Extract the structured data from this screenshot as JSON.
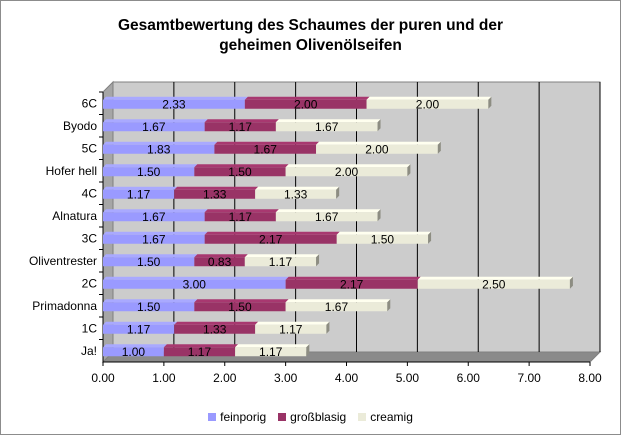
{
  "chart_data": {
    "type": "bar",
    "orientation": "horizontal",
    "stacked": true,
    "title_lines": [
      "Gesamtbewertung des Schaumes der puren und der",
      "geheimen Olivenölseifen"
    ],
    "categories": [
      "6C",
      "Byodo",
      "5C",
      "Hofer hell",
      "4C",
      "Alnatura",
      "3C",
      "Oliventrester",
      "2C",
      "Primadonna",
      "1C",
      "Ja!"
    ],
    "series": [
      {
        "name": "feinporig",
        "color": "#9a9aff",
        "values": [
          2.33,
          1.67,
          1.83,
          1.5,
          1.17,
          1.67,
          1.67,
          1.5,
          3.0,
          1.5,
          1.17,
          1.0
        ],
        "labels": [
          "2.33",
          "1.67",
          "1.83",
          "1.50",
          "1.17",
          "1.67",
          "1.67",
          "1.50",
          "3.00",
          "1.50",
          "1.17",
          "1.00"
        ]
      },
      {
        "name": "großblasig",
        "color": "#993366",
        "values": [
          2.0,
          1.17,
          1.67,
          1.5,
          1.33,
          1.17,
          2.17,
          0.83,
          2.17,
          1.5,
          1.33,
          1.17
        ],
        "labels": [
          "2.00",
          "1.17",
          "1.67",
          "1.50",
          "1.33",
          "1.17",
          "2.17",
          "0.83",
          "2.17",
          "1.50",
          "1.33",
          "1.17"
        ]
      },
      {
        "name": "creamig",
        "color": "#ebebd9",
        "values": [
          2.0,
          1.67,
          2.0,
          2.0,
          1.33,
          1.67,
          1.5,
          1.17,
          2.5,
          1.67,
          1.17,
          1.17
        ],
        "labels": [
          "2.00",
          "1.67",
          "2.00",
          "2.00",
          "1.33",
          "1.67",
          "1.50",
          "1.17",
          "2.50",
          "1.67",
          "1.17",
          "1.17"
        ]
      }
    ],
    "xlim": [
      0,
      8
    ],
    "xticks": [
      "0.00",
      "1.00",
      "2.00",
      "3.00",
      "4.00",
      "5.00",
      "6.00",
      "7.00",
      "8.00"
    ],
    "xlabel": "",
    "ylabel": "",
    "grid": true,
    "legend_position": "bottom",
    "plot_background": "#cccccc"
  }
}
